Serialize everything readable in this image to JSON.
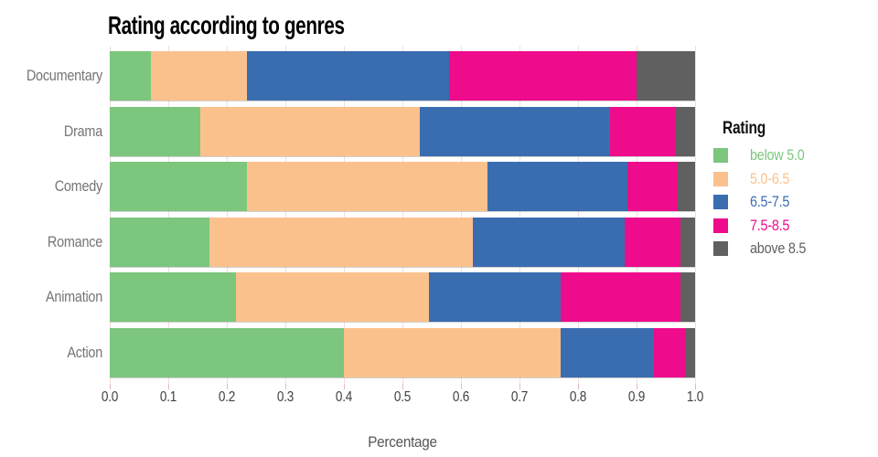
{
  "chart_data": {
    "type": "bar",
    "orientation": "horizontal",
    "stacked": true,
    "title": "Rating according to genres",
    "xlabel": "Percentage",
    "ylabel": "",
    "xlim": [
      0.0,
      1.0
    ],
    "x_ticks": [
      "0.0",
      "0.1",
      "0.2",
      "0.3",
      "0.4",
      "0.5",
      "0.6",
      "0.7",
      "0.8",
      "0.9",
      "1.0"
    ],
    "grid": "vertical gridlines every 0.1, light pink",
    "legend_position": "right",
    "legend_title": "Rating",
    "categories": [
      "Documentary",
      "Drama",
      "Comedy",
      "Romance",
      "Animation",
      "Action"
    ],
    "series": [
      {
        "name": "below 5.0",
        "color": "#7cc67e",
        "values": [
          0.07,
          0.155,
          0.235,
          0.17,
          0.215,
          0.4
        ]
      },
      {
        "name": "5.0-6.5",
        "color": "#fbc18d",
        "values": [
          0.165,
          0.375,
          0.41,
          0.45,
          0.33,
          0.37
        ]
      },
      {
        "name": "6.5-7.5",
        "color": "#3a6db0",
        "values": [
          0.345,
          0.325,
          0.24,
          0.26,
          0.225,
          0.16
        ]
      },
      {
        "name": "7.5-8.5",
        "color": "#ee0b8c",
        "values": [
          0.32,
          0.11,
          0.085,
          0.095,
          0.205,
          0.055
        ]
      },
      {
        "name": "above 8.5",
        "color": "#606060",
        "values": [
          0.1,
          0.035,
          0.03,
          0.025,
          0.025,
          0.015
        ]
      }
    ]
  },
  "style": {
    "background": "#ffffff",
    "gridline_color": "#f3dede",
    "tick_mark_color": "#e3bcbc",
    "category_label_color": "#757575",
    "tick_label_color": "#404040",
    "axis_label_color": "#565656",
    "title_color": "#000000"
  }
}
